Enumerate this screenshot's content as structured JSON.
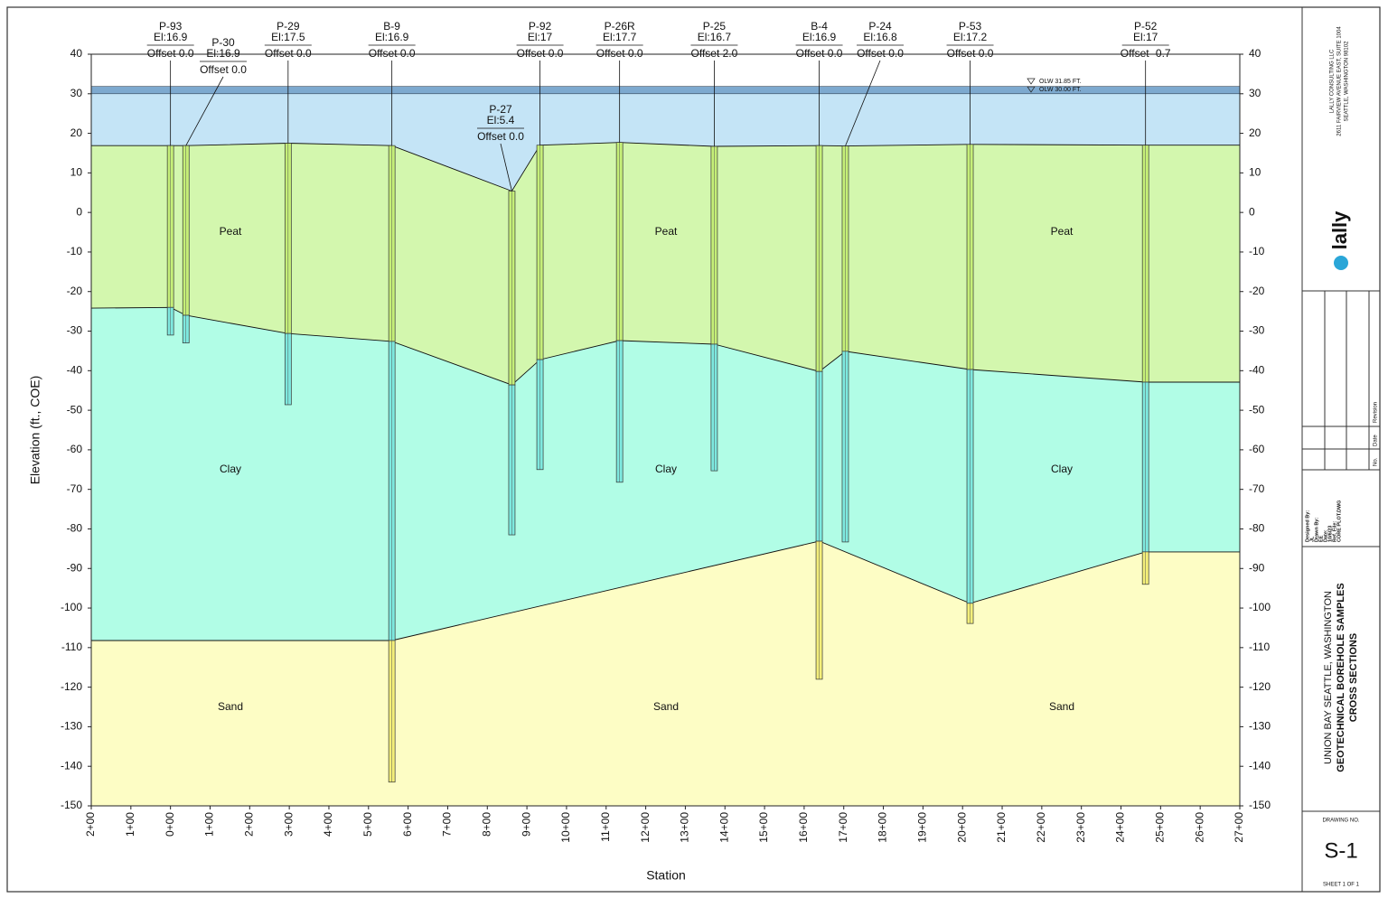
{
  "section": {
    "y_axis_label": "Elevation (ft., COE)",
    "x_axis_label": "Station",
    "xlim": [
      -200,
      2700
    ],
    "ylim": [
      -150,
      40
    ],
    "xticks": [
      {
        "value": -200,
        "label": "2+00"
      },
      {
        "value": -100,
        "label": "1+00"
      },
      {
        "value": 0,
        "label": "0+00"
      },
      {
        "value": 100,
        "label": "1+00"
      },
      {
        "value": 200,
        "label": "2+00"
      },
      {
        "value": 300,
        "label": "3+00"
      },
      {
        "value": 400,
        "label": "4+00"
      },
      {
        "value": 500,
        "label": "5+00"
      },
      {
        "value": 600,
        "label": "6+00"
      },
      {
        "value": 700,
        "label": "7+00"
      },
      {
        "value": 800,
        "label": "8+00"
      },
      {
        "value": 900,
        "label": "9+00"
      },
      {
        "value": 1000,
        "label": "10+00"
      },
      {
        "value": 1100,
        "label": "11+00"
      },
      {
        "value": 1200,
        "label": "12+00"
      },
      {
        "value": 1300,
        "label": "13+00"
      },
      {
        "value": 1400,
        "label": "14+00"
      },
      {
        "value": 1500,
        "label": "15+00"
      },
      {
        "value": 1600,
        "label": "16+00"
      },
      {
        "value": 1700,
        "label": "17+00"
      },
      {
        "value": 1800,
        "label": "18+00"
      },
      {
        "value": 1900,
        "label": "19+00"
      },
      {
        "value": 2000,
        "label": "20+00"
      },
      {
        "value": 2100,
        "label": "21+00"
      },
      {
        "value": 2200,
        "label": "22+00"
      },
      {
        "value": 2300,
        "label": "23+00"
      },
      {
        "value": 2400,
        "label": "24+00"
      },
      {
        "value": 2500,
        "label": "25+00"
      },
      {
        "value": 2600,
        "label": "26+00"
      },
      {
        "value": 2700,
        "label": "27+00"
      }
    ],
    "yticks": [
      40,
      30,
      20,
      10,
      0,
      -10,
      -20,
      -30,
      -40,
      -50,
      -60,
      -70,
      -80,
      -90,
      -100,
      -110,
      -120,
      -130,
      -140,
      -150
    ],
    "water": {
      "olw_high": 31.85,
      "olw_low": 30,
      "olw_high_label": "OLW 31.85 FT.",
      "olw_low_label": "OLW 30.00 FT."
    },
    "layers": [
      {
        "label": "Peat",
        "color": "#d3f7ae"
      },
      {
        "label": "Clay",
        "color": "#b1fde6"
      },
      {
        "label": "Sand",
        "color": "#fdfdc5"
      }
    ],
    "ground": {
      "stations": [
        -200,
        0,
        39,
        297,
        559,
        862,
        933,
        1134,
        1373,
        1638,
        1704,
        2019,
        2462,
        2700
      ],
      "elevations": [
        16.9,
        16.9,
        16.9,
        17.5,
        16.9,
        5.4,
        17,
        17.7,
        16.7,
        16.9,
        16.8,
        17.2,
        17,
        17
      ]
    },
    "peat_clay": {
      "stations": [
        -200,
        0,
        39,
        297,
        559,
        862,
        933,
        1134,
        1373,
        1638,
        1704,
        2019,
        2462,
        2700
      ],
      "elevations": [
        -24.2,
        -24,
        -26,
        -30.6,
        -32.6,
        -43.6,
        -37.2,
        -32.4,
        -33.3,
        -40.2,
        -35.1,
        -39.7,
        -42.9,
        -42.9
      ]
    },
    "clay_sand": {
      "stations": [
        -200,
        559,
        1638,
        2019,
        2462,
        2700
      ],
      "elevations": [
        -108.2,
        -108.2,
        -83.1,
        -98.8,
        -85.8,
        -85.8
      ]
    },
    "boreholes": [
      {
        "name": "P-93",
        "station": 0,
        "elevation": 16.9,
        "el_label": "El:16.9",
        "offset_label": "Offset 0.0",
        "bottom": -31
      },
      {
        "name": "P-30",
        "station": 39,
        "elevation": 16.9,
        "el_label": "El:16.9",
        "offset_label": "Offset 0.0",
        "bottom": -33
      },
      {
        "name": "P-29",
        "station": 297,
        "elevation": 17.5,
        "el_label": "El:17.5",
        "offset_label": "Offset 0.0",
        "bottom": -48.6
      },
      {
        "name": "B-9",
        "station": 559,
        "elevation": 16.9,
        "el_label": "El:16.9",
        "offset_label": "Offset 0.0",
        "bottom": -144
      },
      {
        "name": "P-27",
        "station": 862,
        "elevation": 5.4,
        "el_label": "El:5.4",
        "offset_label": "Offset 0.0",
        "bottom": -81.5
      },
      {
        "name": "P-92",
        "station": 933,
        "elevation": 17,
        "el_label": "El:17",
        "offset_label": "Offset 0.0",
        "bottom": -65
      },
      {
        "name": "P-26R",
        "station": 1134,
        "elevation": 17.7,
        "el_label": "El:17.7",
        "offset_label": "Offset 0.0",
        "bottom": -68.2
      },
      {
        "name": "P-25",
        "station": 1373,
        "elevation": 16.7,
        "el_label": "El:16.7",
        "offset_label": "Offset 2.0",
        "bottom": -65.3
      },
      {
        "name": "B-4",
        "station": 1638,
        "elevation": 16.9,
        "el_label": "El:16.9",
        "offset_label": "Offset 0.0",
        "bottom": -118
      },
      {
        "name": "P-24",
        "station": 1704,
        "elevation": 16.8,
        "el_label": "El:16.8",
        "offset_label": "Offset 0.0",
        "bottom": -83.3
      },
      {
        "name": "P-53",
        "station": 2019,
        "elevation": 17.2,
        "el_label": "El:17.2",
        "offset_label": "Offset 0.0",
        "bottom": -103.9
      },
      {
        "name": "P-52",
        "station": 2462,
        "elevation": 17,
        "el_label": "El:17",
        "offset_label": "Offset -0.7",
        "bottom": -94
      }
    ]
  },
  "title_block": {
    "company": [
      "LALLY CONSULTING LLC",
      "2611 FAIRVIEW AVENUE EAST, SUITE 1004",
      "SEATTLE, WASHINGTON 98102"
    ],
    "logo": "lally",
    "revision_headers": [
      "No.",
      "Date",
      "Revision"
    ],
    "credits": [
      "Designed By:",
      "JL",
      "Drawn By:",
      "EE",
      "Date:",
      "10/6/23",
      "Ref. File:",
      "CORE PLOT.DWG"
    ],
    "project": [
      "UNION BAY SEATTLE, WASHINGTON",
      "GEOTECHNICAL BOREHOLE SAMPLES",
      "CROSS SECTIONS"
    ],
    "drawing_no_label": "DRAWING NO.",
    "drawing_no": "S-1",
    "sheet": "SHEET 1 OF 1"
  }
}
